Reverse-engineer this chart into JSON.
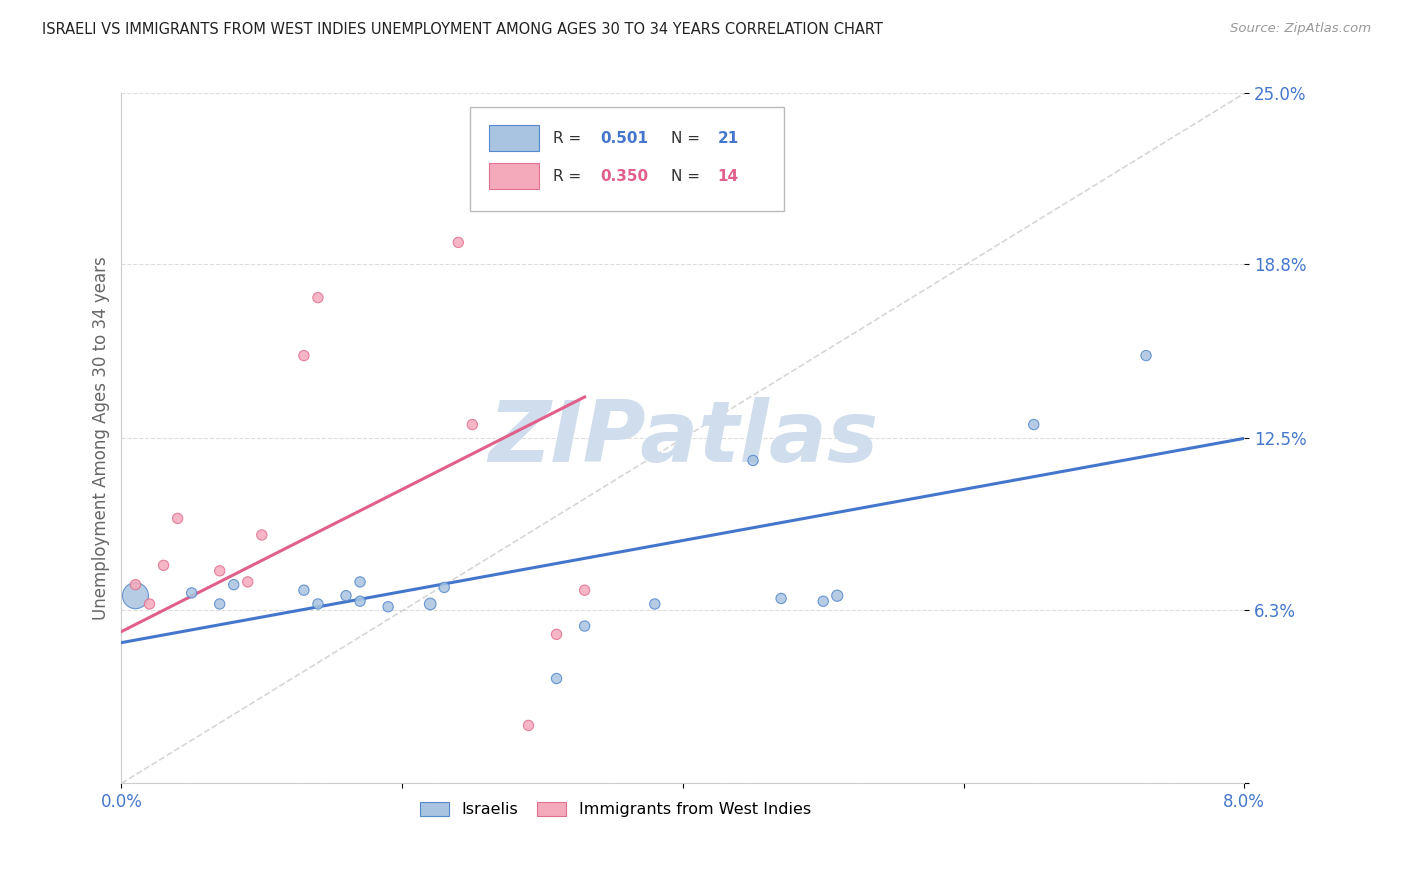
{
  "title": "ISRAELI VS IMMIGRANTS FROM WEST INDIES UNEMPLOYMENT AMONG AGES 30 TO 34 YEARS CORRELATION CHART",
  "source": "Source: ZipAtlas.com",
  "ylabel": "Unemployment Among Ages 30 to 34 years",
  "xlim": [
    0.0,
    0.08
  ],
  "ylim": [
    0.0,
    0.25
  ],
  "yticks": [
    0.0,
    0.063,
    0.125,
    0.188,
    0.25
  ],
  "ytick_labels": [
    "",
    "6.3%",
    "12.5%",
    "18.8%",
    "25.0%"
  ],
  "xticks": [
    0.0,
    0.02,
    0.04,
    0.06,
    0.08
  ],
  "xtick_labels": [
    "0.0%",
    "",
    "",
    "",
    "8.0%"
  ],
  "color_israelis_fill": "#A8C4E0",
  "color_israelis_edge": "#5588CC",
  "color_westindies_fill": "#F5AABB",
  "color_westindies_edge": "#E07090",
  "color_blue_line": "#4477CC",
  "color_pink_line": "#E0608A",
  "color_diagonal": "#CCCCCC",
  "watermark_color": "#D0DDED",
  "israelis_x": [
    0.001,
    0.005,
    0.007,
    0.008,
    0.013,
    0.014,
    0.016,
    0.017,
    0.017,
    0.019,
    0.022,
    0.023,
    0.031,
    0.033,
    0.038,
    0.045,
    0.047,
    0.05,
    0.051,
    0.065,
    0.073
  ],
  "israelis_y": [
    0.068,
    0.069,
    0.065,
    0.072,
    0.07,
    0.065,
    0.068,
    0.066,
    0.073,
    0.064,
    0.065,
    0.071,
    0.038,
    0.057,
    0.065,
    0.117,
    0.067,
    0.066,
    0.068,
    0.13,
    0.155
  ],
  "israelis_size": [
    350,
    55,
    55,
    55,
    55,
    55,
    55,
    55,
    55,
    55,
    70,
    55,
    55,
    55,
    55,
    55,
    55,
    55,
    65,
    55,
    55
  ],
  "westindies_x": [
    0.001,
    0.002,
    0.003,
    0.004,
    0.007,
    0.009,
    0.01,
    0.013,
    0.014,
    0.024,
    0.025,
    0.029,
    0.031,
    0.033
  ],
  "westindies_y": [
    0.072,
    0.065,
    0.079,
    0.096,
    0.077,
    0.073,
    0.09,
    0.155,
    0.176,
    0.196,
    0.13,
    0.021,
    0.054,
    0.07
  ],
  "westindies_size": [
    55,
    55,
    55,
    55,
    55,
    55,
    55,
    55,
    55,
    55,
    55,
    55,
    55,
    55
  ],
  "blue_line_x": [
    0.0,
    0.08
  ],
  "blue_line_y": [
    0.051,
    0.125
  ],
  "pink_line_x": [
    0.0,
    0.033
  ],
  "pink_line_y": [
    0.055,
    0.14
  ],
  "diag_line_x": [
    0.0,
    0.08
  ],
  "diag_line_y": [
    0.0,
    0.25
  ],
  "legend_r1": "0.501",
  "legend_n1": "21",
  "legend_r2": "0.350",
  "legend_n2": "14"
}
